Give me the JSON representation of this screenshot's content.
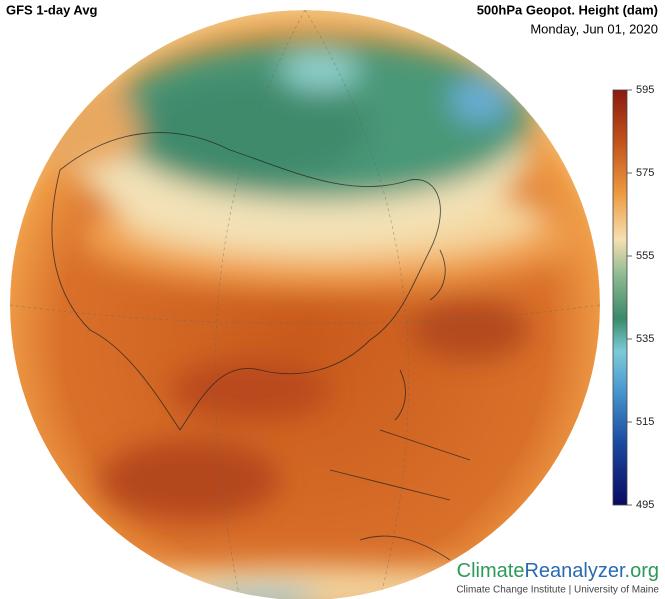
{
  "header": {
    "title": "GFS 1-day Avg",
    "variable": "500hPa Geopot. Height (dam)",
    "date": "Monday, Jun 01, 2020"
  },
  "colorbar": {
    "range": [
      495,
      595
    ],
    "ticks": [
      595,
      575,
      555,
      535,
      515,
      495
    ]
  },
  "logo": {
    "parts": [
      "Climate",
      "Reanalyzer",
      ".org"
    ],
    "subtitle": "Climate Change Institute | University of Maine"
  }
}
